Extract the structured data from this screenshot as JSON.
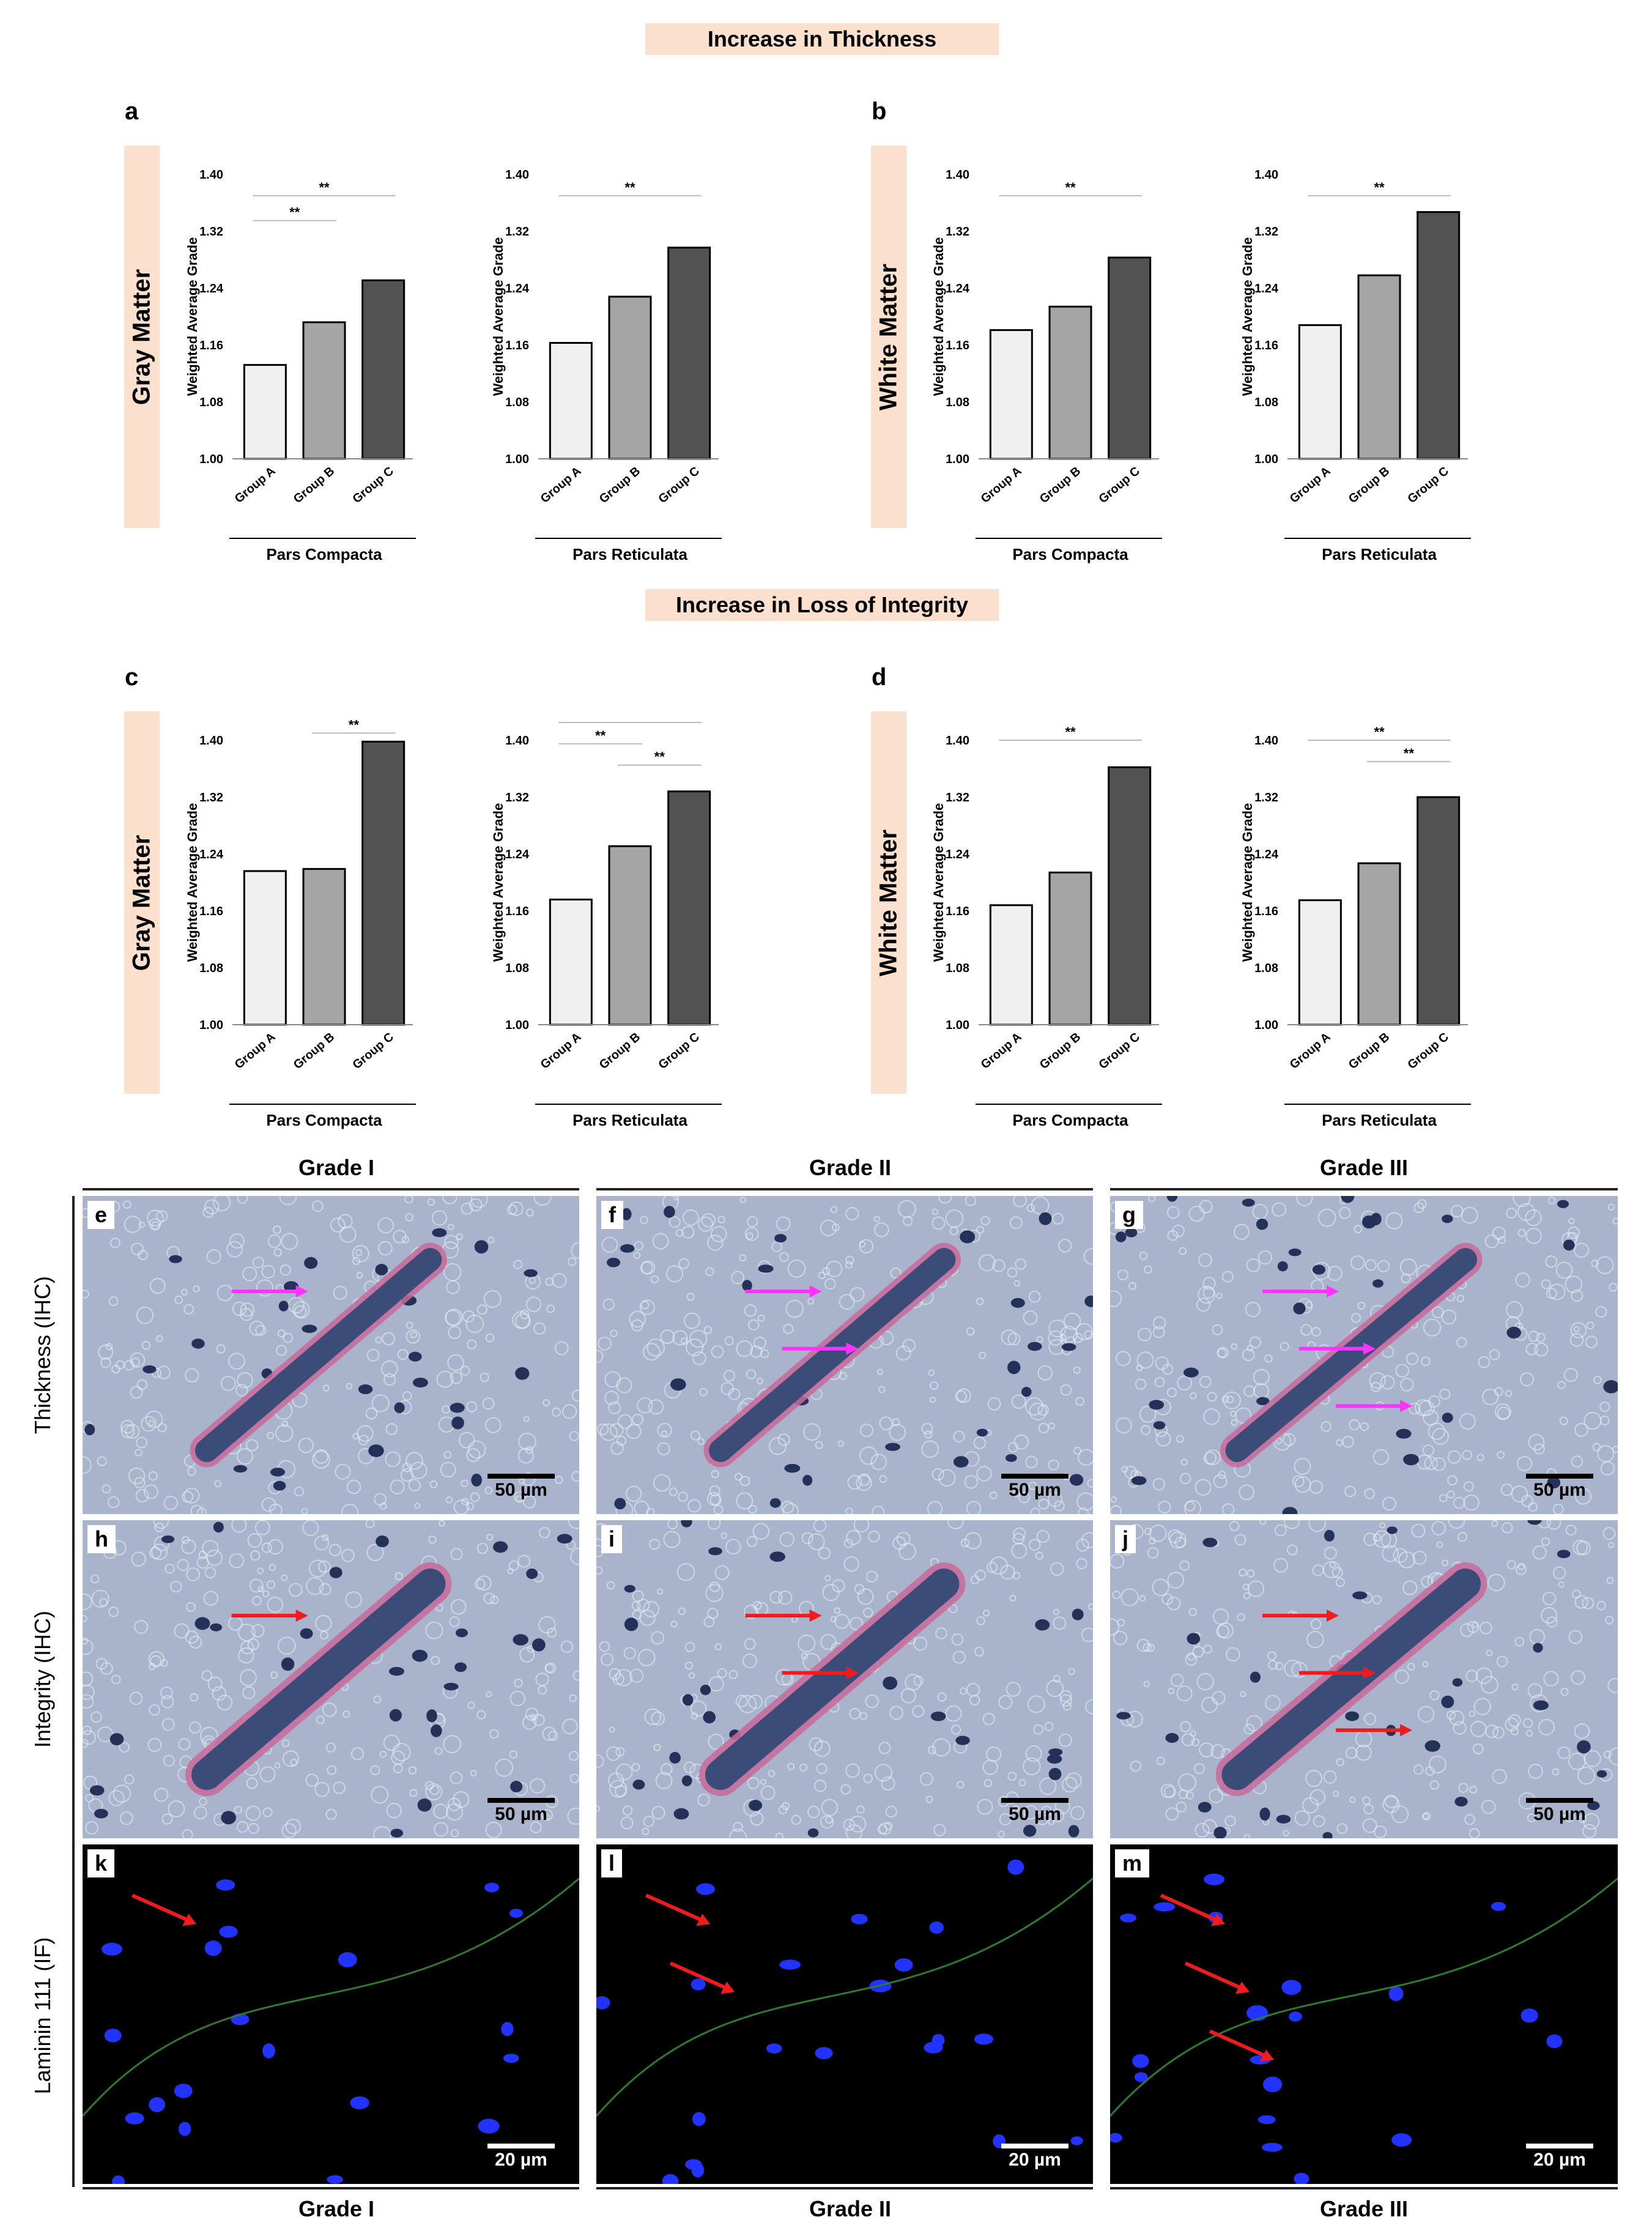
{
  "banners": {
    "thickness": "Increase in Thickness",
    "integrity": "Increase in Loss of Integrity"
  },
  "panel_letters": {
    "a": "a",
    "b": "b",
    "c": "c",
    "d": "d"
  },
  "side_labels": {
    "gray": "Gray Matter",
    "white": "White Matter"
  },
  "chart_data": [
    {
      "panel": "a",
      "type": "bar",
      "region": "Pars Compacta",
      "categories": [
        "Group A",
        "Group B",
        "Group C"
      ],
      "values": [
        1.132,
        1.192,
        1.251
      ],
      "ylabel": "Weighted Average Grade",
      "yticks": [
        "1.00",
        "1.08",
        "1.16",
        "1.24",
        "1.32",
        "1.40"
      ],
      "ylim": [
        1.0,
        1.4
      ],
      "colors": [
        "#f0f0f0",
        "#a5a5a5",
        "#525252"
      ],
      "sig": [
        {
          "from": 0,
          "to": 2,
          "y": 1.37,
          "label": "**"
        },
        {
          "from": 0,
          "to": 1,
          "y": 1.335,
          "label": "**"
        }
      ]
    },
    {
      "panel": "a",
      "type": "bar",
      "region": "Pars Reticulata",
      "categories": [
        "Group A",
        "Group B",
        "Group C"
      ],
      "values": [
        1.163,
        1.228,
        1.297
      ],
      "ylabel": "Weighted Average Grade",
      "yticks": [
        "1.00",
        "1.08",
        "1.16",
        "1.24",
        "1.32",
        "1.40"
      ],
      "ylim": [
        1.0,
        1.4
      ],
      "colors": [
        "#f0f0f0",
        "#a5a5a5",
        "#525252"
      ],
      "sig": [
        {
          "from": 0,
          "to": 2,
          "y": 1.37,
          "label": "**"
        }
      ]
    },
    {
      "panel": "b",
      "type": "bar",
      "region": "Pars Compacta",
      "categories": [
        "Group A",
        "Group B",
        "Group C"
      ],
      "values": [
        1.181,
        1.214,
        1.283
      ],
      "ylabel": "Weighted Average Grade",
      "yticks": [
        "1.00",
        "1.08",
        "1.16",
        "1.24",
        "1.32",
        "1.40"
      ],
      "ylim": [
        1.0,
        1.4
      ],
      "colors": [
        "#f0f0f0",
        "#a5a5a5",
        "#525252"
      ],
      "sig": [
        {
          "from": 0,
          "to": 2,
          "y": 1.37,
          "label": "**"
        }
      ]
    },
    {
      "panel": "b",
      "type": "bar",
      "region": "Pars Reticulata",
      "categories": [
        "Group A",
        "Group B",
        "Group C"
      ],
      "values": [
        1.188,
        1.258,
        1.347
      ],
      "ylabel": "Weighted Average Grade",
      "yticks": [
        "1.00",
        "1.08",
        "1.16",
        "1.24",
        "1.32",
        "1.40"
      ],
      "ylim": [
        1.0,
        1.4
      ],
      "colors": [
        "#f0f0f0",
        "#a5a5a5",
        "#525252"
      ],
      "sig": [
        {
          "from": 0,
          "to": 2,
          "y": 1.37,
          "label": "**"
        }
      ]
    },
    {
      "panel": "c",
      "type": "bar",
      "region": "Pars Compacta",
      "categories": [
        "Group A",
        "Group B",
        "Group C"
      ],
      "values": [
        1.216,
        1.219,
        1.398
      ],
      "ylabel": "Weighted Average Grade",
      "yticks": [
        "1.00",
        "1.08",
        "1.16",
        "1.24",
        "1.32",
        "1.40"
      ],
      "ylim": [
        1.0,
        1.4
      ],
      "colors": [
        "#f0f0f0",
        "#a5a5a5",
        "#525252"
      ],
      "sig": [
        {
          "from": 0,
          "to": 2,
          "y": 1.445,
          "label": "**"
        },
        {
          "from": 1,
          "to": 2,
          "y": 1.41,
          "label": "**"
        }
      ]
    },
    {
      "panel": "c",
      "type": "bar",
      "region": "Pars Reticulata",
      "categories": [
        "Group A",
        "Group B",
        "Group C"
      ],
      "values": [
        1.176,
        1.251,
        1.328
      ],
      "ylabel": "Weighted Average Grade",
      "yticks": [
        "1.00",
        "1.08",
        "1.16",
        "1.24",
        "1.32",
        "1.40"
      ],
      "ylim": [
        1.0,
        1.4
      ],
      "colors": [
        "#f0f0f0",
        "#a5a5a5",
        "#525252"
      ],
      "sig": [
        {
          "from": 0,
          "to": 2,
          "y": 1.425,
          "label": "**"
        },
        {
          "from": 0,
          "to": 1,
          "y": 1.395,
          "label": "**"
        },
        {
          "from": 1,
          "to": 2,
          "y": 1.365,
          "label": "**"
        }
      ]
    },
    {
      "panel": "d",
      "type": "bar",
      "region": "Pars Compacta",
      "categories": [
        "Group A",
        "Group B",
        "Group C"
      ],
      "values": [
        1.168,
        1.214,
        1.362
      ],
      "ylabel": "Weighted Average Grade",
      "yticks": [
        "1.00",
        "1.08",
        "1.16",
        "1.24",
        "1.32",
        "1.40"
      ],
      "ylim": [
        1.0,
        1.4
      ],
      "colors": [
        "#f0f0f0",
        "#a5a5a5",
        "#525252"
      ],
      "sig": [
        {
          "from": 0,
          "to": 2,
          "y": 1.4,
          "label": "**"
        }
      ]
    },
    {
      "panel": "d",
      "type": "bar",
      "region": "Pars Reticulata",
      "categories": [
        "Group A",
        "Group B",
        "Group C"
      ],
      "values": [
        1.175,
        1.227,
        1.32
      ],
      "ylabel": "Weighted Average Grade",
      "yticks": [
        "1.00",
        "1.08",
        "1.16",
        "1.24",
        "1.32",
        "1.40"
      ],
      "ylim": [
        1.0,
        1.4
      ],
      "colors": [
        "#f0f0f0",
        "#a5a5a5",
        "#525252"
      ],
      "sig": [
        {
          "from": 0,
          "to": 2,
          "y": 1.4,
          "label": "**"
        },
        {
          "from": 1,
          "to": 2,
          "y": 1.37,
          "label": "**"
        }
      ]
    }
  ],
  "grades": [
    "Grade I",
    "Grade II",
    "Grade III"
  ],
  "row_labels": [
    "Thickness (IHC)",
    "Integrity (IHC)",
    "Laminin 111 (IF)"
  ],
  "micrographs": [
    {
      "letter": "e",
      "scale": "50 µm",
      "kind": "ihc"
    },
    {
      "letter": "f",
      "scale": "50 µm",
      "kind": "ihc"
    },
    {
      "letter": "g",
      "scale": "50 µm",
      "kind": "ihc"
    },
    {
      "letter": "h",
      "scale": "50 µm",
      "kind": "ihc"
    },
    {
      "letter": "i",
      "scale": "50 µm",
      "kind": "ihc"
    },
    {
      "letter": "j",
      "scale": "50 µm",
      "kind": "ihc"
    },
    {
      "letter": "k",
      "scale": "20 µm",
      "kind": "if"
    },
    {
      "letter": "l",
      "scale": "20 µm",
      "kind": "if"
    },
    {
      "letter": "m",
      "scale": "20 µm",
      "kind": "if"
    }
  ],
  "colors": {
    "banner": "#fbe0cd",
    "ihc_bg": "#a9b4cc",
    "if_bg": "#000000",
    "arrow_magenta": "#ff33ff",
    "arrow_red": "#ee1c1c"
  }
}
